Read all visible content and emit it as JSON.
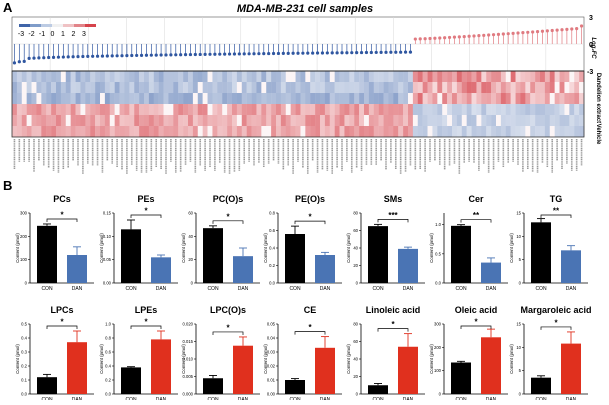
{
  "panel_a": {
    "label": "A",
    "title": "MDA-MB-231 cell samples",
    "colorbar_ticks": [
      "-3",
      "-2",
      "-1",
      "0",
      "1",
      "2",
      "3"
    ],
    "lollipop_ylabel": "Log₂FC",
    "lollipop_ticks": [
      "3",
      "0",
      "-3"
    ],
    "row_groups": [
      "Dandelion extract",
      "Vehicle"
    ],
    "n_down": 82,
    "n_up": 35,
    "colors": {
      "down": "#2f56a0",
      "up": "#e07a80",
      "heat_red": "#d9474f",
      "heat_blue": "#5a7fbf"
    }
  },
  "panel_b_label": "B",
  "chart_data": [
    {
      "type": "bar",
      "title": "PCs",
      "categories": [
        "CON",
        "DAN"
      ],
      "values": [
        245,
        120
      ],
      "errors": [
        8,
        35
      ],
      "ylabel": "Content (pmol)",
      "ylim": [
        0,
        300
      ],
      "yticks": [
        "0",
        "100",
        "200",
        "300"
      ],
      "sig": "*",
      "colors": [
        "#000000",
        "#4a74b4"
      ]
    },
    {
      "type": "bar",
      "title": "PEs",
      "categories": [
        "CON",
        "DAN"
      ],
      "values": [
        0.115,
        0.055
      ],
      "errors": [
        0.02,
        0.005
      ],
      "ylabel": "Content (pmol)",
      "ylim": [
        0,
        0.15
      ],
      "yticks": [
        "0.00",
        "0.05",
        "0.10",
        "0.15"
      ],
      "sig": "*",
      "colors": [
        "#000000",
        "#4a74b4"
      ]
    },
    {
      "type": "bar",
      "title": "PC(O)s",
      "categories": [
        "CON",
        "DAN"
      ],
      "values": [
        47,
        23
      ],
      "errors": [
        2,
        7
      ],
      "ylabel": "Content (pmol)",
      "ylim": [
        0,
        60
      ],
      "yticks": [
        "0",
        "20",
        "40",
        "60"
      ],
      "sig": "*",
      "colors": [
        "#000000",
        "#4a74b4"
      ]
    },
    {
      "type": "bar",
      "title": "PE(O)s",
      "categories": [
        "CON",
        "DAN"
      ],
      "values": [
        0.56,
        0.32
      ],
      "errors": [
        0.09,
        0.03
      ],
      "ylabel": "Content (pmol)",
      "ylim": [
        0,
        0.8
      ],
      "yticks": [
        "0.0",
        "0.2",
        "0.4",
        "0.6",
        "0.8"
      ],
      "sig": "*",
      "colors": [
        "#000000",
        "#4a74b4"
      ]
    },
    {
      "type": "bar",
      "title": "SMs",
      "categories": [
        "CON",
        "DAN"
      ],
      "values": [
        65,
        39
      ],
      "errors": [
        2,
        2
      ],
      "ylabel": "Content (pmol)",
      "ylim": [
        0,
        80
      ],
      "yticks": [
        "0",
        "20",
        "40",
        "60",
        "80"
      ],
      "sig": "***",
      "colors": [
        "#000000",
        "#4a74b4"
      ]
    },
    {
      "type": "bar",
      "title": "Cer",
      "categories": [
        "CON",
        "DAN"
      ],
      "values": [
        0.98,
        0.35
      ],
      "errors": [
        0.02,
        0.08
      ],
      "ylabel": "Content (pmol)",
      "ylim": [
        0,
        1.2
      ],
      "yticks": [
        "0.0",
        "0.5",
        "1.0"
      ],
      "sig": "**",
      "colors": [
        "#000000",
        "#4a74b4"
      ]
    },
    {
      "type": "bar",
      "title": "TG",
      "categories": [
        "CON",
        "DAN"
      ],
      "values": [
        13,
        7
      ],
      "errors": [
        0.8,
        1
      ],
      "ylabel": "Content (pmol)",
      "ylim": [
        0,
        15
      ],
      "yticks": [
        "0",
        "5",
        "10",
        "15"
      ],
      "sig": "**",
      "colors": [
        "#000000",
        "#4a74b4"
      ]
    },
    {
      "type": "bar",
      "title": "LPCs",
      "categories": [
        "CON",
        "DAN"
      ],
      "values": [
        0.12,
        0.37
      ],
      "errors": [
        0.02,
        0.08
      ],
      "ylabel": "Content (pmol)",
      "ylim": [
        0,
        0.5
      ],
      "yticks": [
        "0.0",
        "0.1",
        "0.2",
        "0.3",
        "0.4",
        "0.5"
      ],
      "sig": "*",
      "colors": [
        "#000000",
        "#e0301e"
      ]
    },
    {
      "type": "bar",
      "title": "LPEs",
      "categories": [
        "CON",
        "DAN"
      ],
      "values": [
        0.38,
        0.78
      ],
      "errors": [
        0.01,
        0.12
      ],
      "ylabel": "Content (pmol)",
      "ylim": [
        0,
        1.0
      ],
      "yticks": [
        "0.0",
        "0.2",
        "0.4",
        "0.6",
        "0.8",
        "1.0"
      ],
      "sig": "*",
      "colors": [
        "#000000",
        "#e0301e"
      ]
    },
    {
      "type": "bar",
      "title": "LPC(O)s",
      "categories": [
        "CON",
        "DAN"
      ],
      "values": [
        0.0045,
        0.0138
      ],
      "errors": [
        0.0008,
        0.0025
      ],
      "ylabel": "Content (pmol)",
      "ylim": [
        0,
        0.02
      ],
      "yticks": [
        "0.000",
        "0.005",
        "0.010",
        "0.015",
        "0.020"
      ],
      "sig": "*",
      "colors": [
        "#000000",
        "#e0301e"
      ]
    },
    {
      "type": "bar",
      "title": "CE",
      "categories": [
        "CON",
        "DAN"
      ],
      "values": [
        0.01,
        0.033
      ],
      "errors": [
        0.001,
        0.008
      ],
      "ylabel": "Content (pmol)",
      "ylim": [
        0,
        0.05
      ],
      "yticks": [
        "0.00",
        "0.01",
        "0.02",
        "0.03",
        "0.04",
        "0.05"
      ],
      "sig": "*",
      "colors": [
        "#000000",
        "#e0301e"
      ]
    },
    {
      "type": "bar",
      "title": "Linoleic acid",
      "categories": [
        "CON",
        "DAN"
      ],
      "values": [
        10,
        54
      ],
      "errors": [
        2,
        15
      ],
      "ylabel": "Content (pmol)",
      "ylim": [
        0,
        80
      ],
      "yticks": [
        "0",
        "20",
        "40",
        "60",
        "80"
      ],
      "sig": "*",
      "colors": [
        "#000000",
        "#e0301e"
      ]
    },
    {
      "type": "bar",
      "title": "Oleic acid",
      "categories": [
        "CON",
        "DAN"
      ],
      "values": [
        135,
        243
      ],
      "errors": [
        5,
        35
      ],
      "ylabel": "Content (pmol)",
      "ylim": [
        0,
        300
      ],
      "yticks": [
        "0",
        "100",
        "200",
        "300"
      ],
      "sig": "*",
      "colors": [
        "#000000",
        "#e0301e"
      ]
    },
    {
      "type": "bar",
      "title": "Margaroleic acid",
      "categories": [
        "CON",
        "DAN"
      ],
      "values": [
        3.5,
        10.8
      ],
      "errors": [
        0.4,
        2.5
      ],
      "ylabel": "Content (pmol)",
      "ylim": [
        0,
        15
      ],
      "yticks": [
        "0",
        "5",
        "10",
        "15"
      ],
      "sig": "*",
      "colors": [
        "#000000",
        "#e0301e"
      ]
    }
  ]
}
